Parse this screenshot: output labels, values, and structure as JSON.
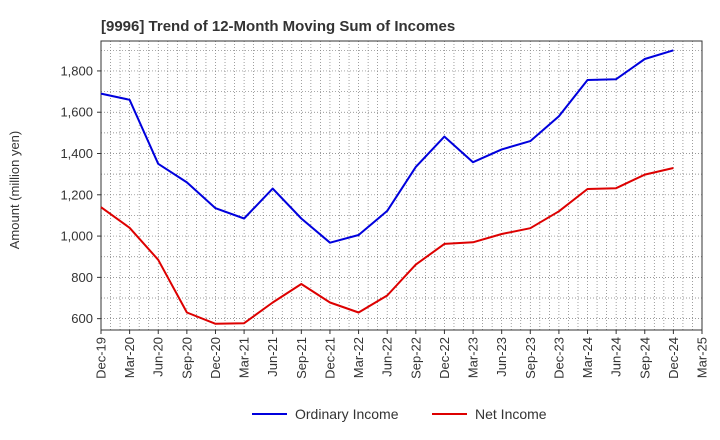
{
  "chart_data": {
    "type": "line",
    "title": "[9996]  Trend of 12-Month Moving Sum of Incomes",
    "xlabel": "",
    "ylabel": "Amount (million yen)",
    "ylim": [
      545,
      1945
    ],
    "yticks": [
      600,
      800,
      1000,
      1200,
      1400,
      1600,
      1800
    ],
    "ytick_labels": [
      "600",
      "800",
      "1,000",
      "1,200",
      "1,400",
      "1,600",
      "1,800"
    ],
    "grid": true,
    "legend_position": "bottom-center",
    "categories": [
      "Dec-19",
      "Mar-20",
      "Jun-20",
      "Sep-20",
      "Dec-20",
      "Mar-21",
      "Jun-21",
      "Sep-21",
      "Dec-21",
      "Mar-22",
      "Jun-22",
      "Sep-22",
      "Dec-22",
      "Mar-23",
      "Jun-23",
      "Sep-23",
      "Dec-23",
      "Mar-24",
      "Jun-24",
      "Sep-24",
      "Dec-24",
      "Mar-25"
    ],
    "series": [
      {
        "name": "Ordinary Income",
        "color": "#0000dd",
        "values": [
          1690,
          1660,
          1350,
          1260,
          1135,
          1085,
          1230,
          1085,
          968,
          1005,
          1122,
          1335,
          1482,
          1358,
          1420,
          1460,
          1580,
          1756,
          1760,
          1858,
          1900,
          null
        ]
      },
      {
        "name": "Net Income",
        "color": "#dd0000",
        "values": [
          1140,
          1040,
          885,
          630,
          575,
          578,
          678,
          768,
          678,
          630,
          712,
          862,
          962,
          970,
          1010,
          1038,
          1120,
          1228,
          1232,
          1298,
          1330,
          null
        ]
      }
    ]
  }
}
